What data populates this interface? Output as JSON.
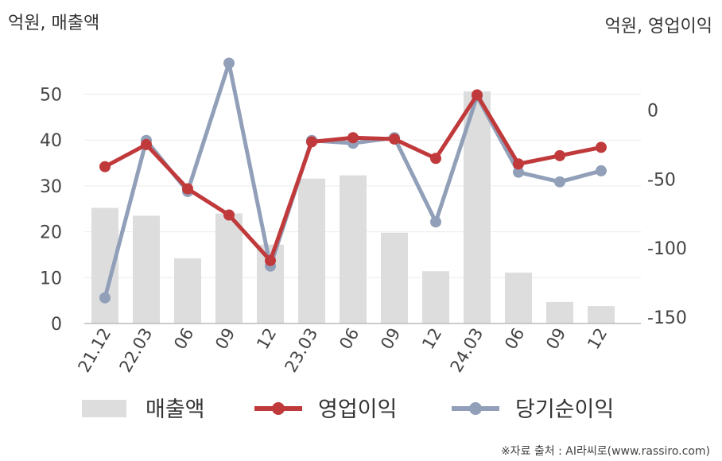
{
  "chart_data": {
    "type": "bar",
    "left_axis_unit": "억원, 매출액",
    "right_axis_unit": "억원, 영업이익",
    "categories": [
      "21.12",
      "22.03",
      "06",
      "09",
      "12",
      "23.03",
      "06",
      "09",
      "12",
      "24.03",
      "06",
      "09",
      "12"
    ],
    "left_ylim": [
      0,
      55
    ],
    "left_yticks": [
      0,
      10,
      20,
      30,
      40,
      50
    ],
    "right_ylim": [
      -150,
      20
    ],
    "right_yticks": [
      0,
      -50,
      -100,
      -150
    ],
    "grid": true,
    "legend_position": "bottom",
    "series": [
      {
        "name": "매출액",
        "kind": "bar",
        "axis": "left",
        "color": "#dddddd",
        "values": [
          25.2,
          23.5,
          14.2,
          24.0,
          17.2,
          31.6,
          32.3,
          19.8,
          11.4,
          50.6,
          11.1,
          4.7,
          3.8
        ]
      },
      {
        "name": "영업이익",
        "kind": "line",
        "axis": "right",
        "color": "#c0393b",
        "values": [
          -41,
          -25,
          -57,
          -76,
          -109,
          -23,
          -20,
          -21,
          -35,
          11,
          -39,
          -33,
          -27
        ]
      },
      {
        "name": "당기순이익",
        "kind": "line",
        "axis": "right",
        "color": "#919fb8",
        "values": [
          -136,
          -22,
          -59,
          34,
          -113,
          -22,
          -24,
          -20,
          -81,
          10,
          -45,
          -52,
          -44
        ]
      }
    ]
  },
  "source_note": "※자료 출처 : AI라씨로(www.rassiro.com)"
}
